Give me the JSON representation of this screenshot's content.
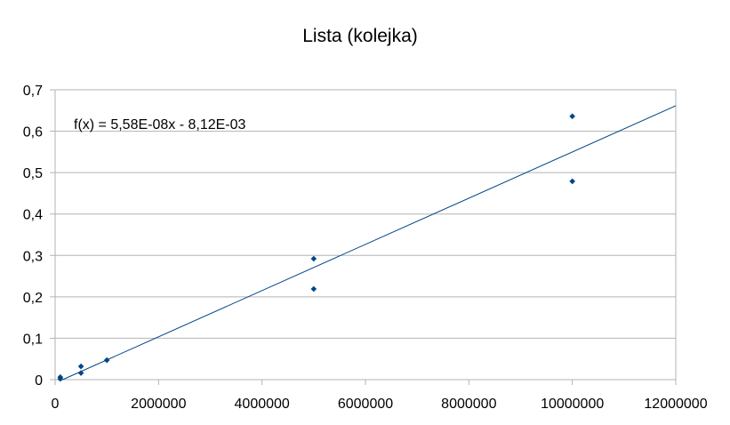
{
  "chart_data": {
    "type": "scatter",
    "title": "Lista (kolejka)",
    "xlabel": "",
    "ylabel": "",
    "xlim": [
      0,
      12000000
    ],
    "ylim": [
      0,
      0.7
    ],
    "x_ticks": [
      0,
      2000000,
      4000000,
      6000000,
      8000000,
      10000000,
      12000000
    ],
    "x_tick_labels": [
      "0",
      "2000000",
      "4000000",
      "6000000",
      "8000000",
      "10000000",
      "12000000"
    ],
    "y_ticks": [
      0,
      0.1,
      0.2,
      0.3,
      0.4,
      0.5,
      0.6,
      0.7
    ],
    "y_tick_labels": [
      "0",
      "0,1",
      "0,2",
      "0,3",
      "0,4",
      "0,5",
      "0,6",
      "0,7"
    ],
    "grid": true,
    "series": [
      {
        "points": [
          {
            "x": 100000,
            "y": 0.002
          },
          {
            "x": 100000,
            "y": 0.006
          },
          {
            "x": 500000,
            "y": 0.016
          },
          {
            "x": 500000,
            "y": 0.032
          },
          {
            "x": 1000000,
            "y": 0.047
          },
          {
            "x": 5000000,
            "y": 0.292
          },
          {
            "x": 5000000,
            "y": 0.219
          },
          {
            "x": 10000000,
            "y": 0.636
          },
          {
            "x": 10000000,
            "y": 0.479
          }
        ],
        "color": "#004586"
      }
    ],
    "trendline": {
      "type": "linear",
      "slope": 5.58e-08,
      "intercept": -0.00812,
      "color": "#004586",
      "equation_label": "f(x) = 5,58E-08x - 8,12E-03"
    }
  }
}
